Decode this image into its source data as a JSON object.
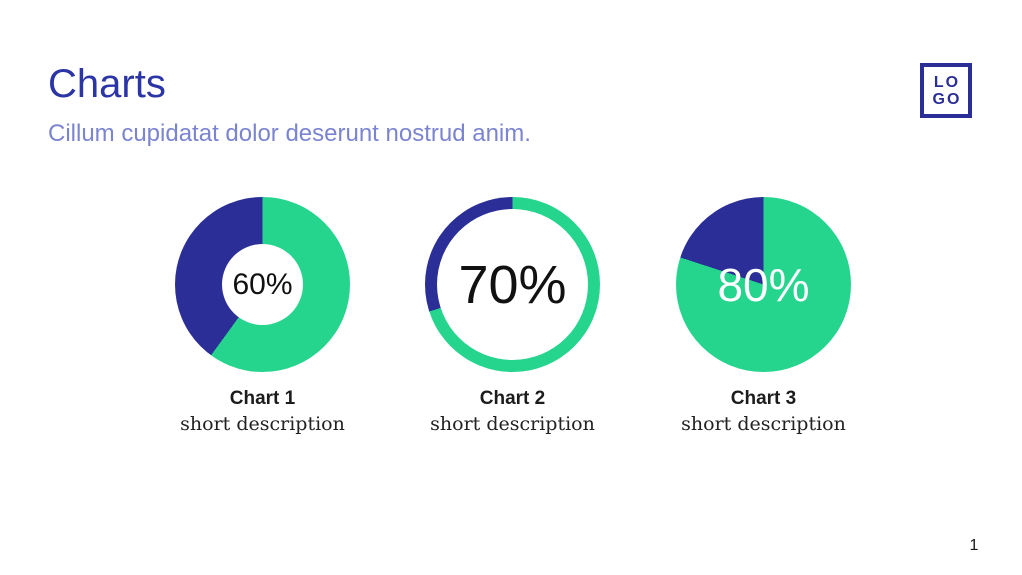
{
  "page": {
    "title": "Charts",
    "subtitle": "Cillum cupidatat dolor deserunt nostrud anim.",
    "page_number": "1"
  },
  "logo": {
    "line1": "LO",
    "line2": "GO"
  },
  "colors": {
    "accent_green": "#25d58d",
    "accent_indigo": "#2a2e96",
    "title_color": "#2c35a6",
    "subtitle_color": "#7b84d1",
    "text_dark": "#1c1c1c"
  },
  "chart_data": [
    {
      "type": "pie",
      "style": "donut",
      "value": 60,
      "center_label": "60%",
      "title": "Chart 1",
      "description": "short description",
      "segments": [
        {
          "name": "filled",
          "value": 60,
          "color": "#25d58d"
        },
        {
          "name": "remainder",
          "value": 40,
          "color": "#2a2e96"
        }
      ]
    },
    {
      "type": "pie",
      "style": "ring",
      "value": 70,
      "center_label": "70%",
      "title": "Chart 2",
      "description": "short description",
      "segments": [
        {
          "name": "filled",
          "value": 70,
          "color": "#25d58d"
        },
        {
          "name": "remainder",
          "value": 30,
          "color": "#2a2e96"
        }
      ]
    },
    {
      "type": "pie",
      "style": "pie",
      "value": 80,
      "center_label": "80%",
      "title": "Chart 3",
      "description": "short description",
      "segments": [
        {
          "name": "filled",
          "value": 80,
          "color": "#25d58d"
        },
        {
          "name": "remainder",
          "value": 20,
          "color": "#2a2e96"
        }
      ]
    }
  ]
}
